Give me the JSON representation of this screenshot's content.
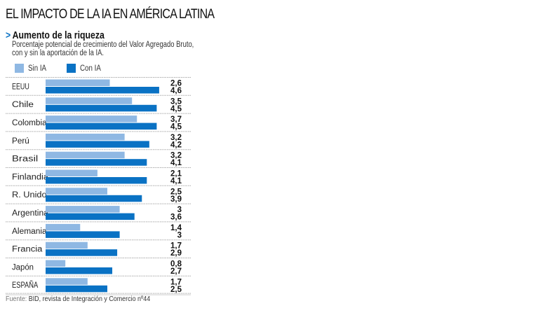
{
  "header": {
    "title": "EL IMPACTO DE LA IA EN AMÉRICA LATINA",
    "subtitle_arrow": ">",
    "subtitle": "Aumento de la riqueza",
    "description_line1": "Porcentaje potencial de crecimiento del Valor Agregado Bruto,",
    "description_line2": "con y sin la aportación de la IA."
  },
  "legend": [
    {
      "label": "Sin IA",
      "color": "#8fb8e3"
    },
    {
      "label": "Con IA",
      "color": "#0a72c4"
    }
  ],
  "footer": {
    "source_label": "Fuente:",
    "source_text": " BID, revista de Integración y Comercio nº44"
  },
  "chart_data": {
    "type": "bar",
    "orientation": "horizontal",
    "title": "Aumento de la riqueza",
    "subtitle": "Porcentaje potencial de crecimiento del Valor Agregado Bruto, con y sin la aportación de la IA.",
    "xlabel": "",
    "ylabel": "",
    "xlim": [
      0,
      4.6
    ],
    "grid": false,
    "legend_position": "top-left",
    "categories": [
      "EEUU",
      "Chile",
      "Colombia",
      "Perú",
      "Brasil",
      "Finlandia",
      "R. Unido",
      "Argentina",
      "Alemania",
      "Francia",
      "Japón",
      "ESPAÑA"
    ],
    "series": [
      {
        "name": "Sin IA",
        "color": "#8fb8e3",
        "values": [
          2.6,
          3.5,
          3.7,
          3.2,
          3.2,
          2.1,
          2.5,
          3,
          1.4,
          1.7,
          0.8,
          1.7
        ],
        "labels": [
          "2,6",
          "3,5",
          "3,7",
          "3,2",
          "3,2",
          "2,1",
          "2,5",
          "3",
          "1,4",
          "1,7",
          "0,8",
          "1,7"
        ]
      },
      {
        "name": "Con IA",
        "color": "#0a72c4",
        "values": [
          4.6,
          4.5,
          4.5,
          4.2,
          4.1,
          4.1,
          3.9,
          3.6,
          3,
          2.9,
          2.7,
          2.5
        ],
        "labels": [
          "4,6",
          "4,5",
          "4,5",
          "4,2",
          "4,1",
          "4,1",
          "3,9",
          "3,6",
          "3",
          "2,9",
          "2,7",
          "2,5"
        ]
      }
    ],
    "source": "Fuente: BID, revista de Integración y Comercio nº44"
  }
}
